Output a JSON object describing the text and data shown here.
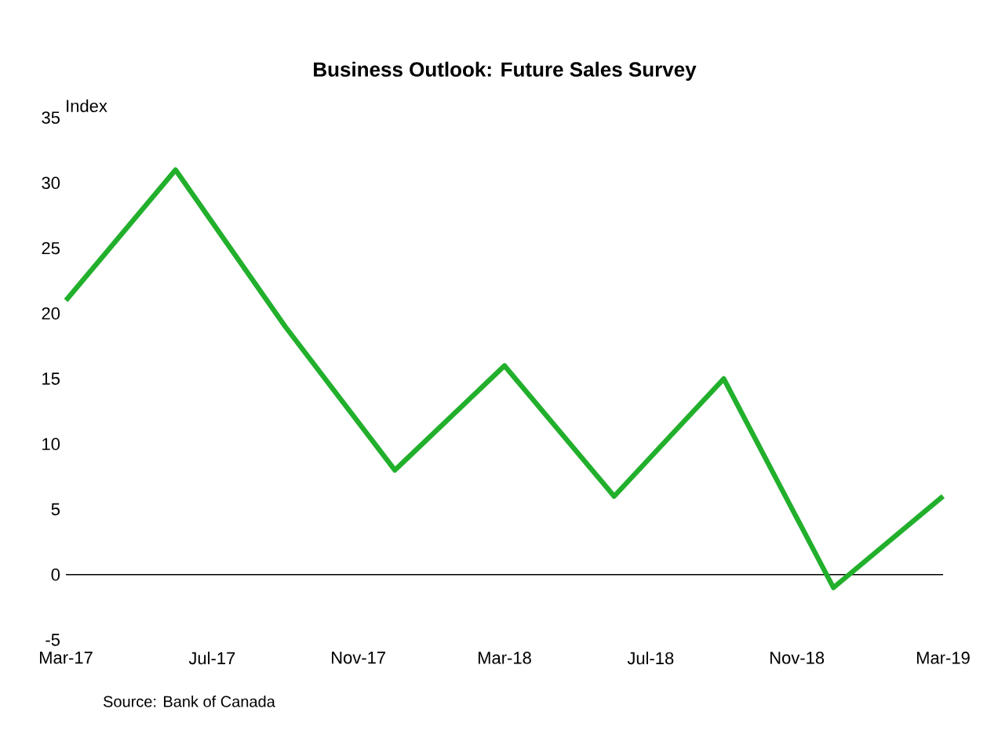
{
  "chart_data": {
    "type": "line",
    "title": "Business Outlook: Future Sales Survey",
    "ylabel": "Index",
    "x": [
      "2017-03",
      "2017-06",
      "2017-09",
      "2017-12",
      "2018-03",
      "2018-06",
      "2018-09",
      "2018-12",
      "2019-03"
    ],
    "series": [
      {
        "color": "#22b02c",
        "values": [
          21,
          31,
          19,
          8,
          16,
          6,
          15,
          -1,
          6
        ]
      }
    ],
    "xlim": [
      "2017-03",
      "2019-03"
    ],
    "xticks": [
      {
        "value": "2017-03",
        "label": "Mar-17"
      },
      {
        "value": "2017-07",
        "label": "Jul-17"
      },
      {
        "value": "2017-11",
        "label": "Nov-17"
      },
      {
        "value": "2018-03",
        "label": "Mar-18"
      },
      {
        "value": "2018-07",
        "label": "Jul-18"
      },
      {
        "value": "2018-11",
        "label": "Nov-18"
      },
      {
        "value": "2019-03",
        "label": "Mar-19"
      }
    ],
    "ylim": [
      -5,
      35
    ],
    "yticks": [
      -5,
      0,
      5,
      10,
      15,
      20,
      25,
      30,
      35
    ],
    "ref_lines": [
      {
        "axis": "y",
        "value": 0,
        "color": "#000000"
      }
    ],
    "grid": false,
    "marker": "none",
    "line_style": "solid",
    "annotations": [
      "Source: Bank of Canada"
    ]
  }
}
